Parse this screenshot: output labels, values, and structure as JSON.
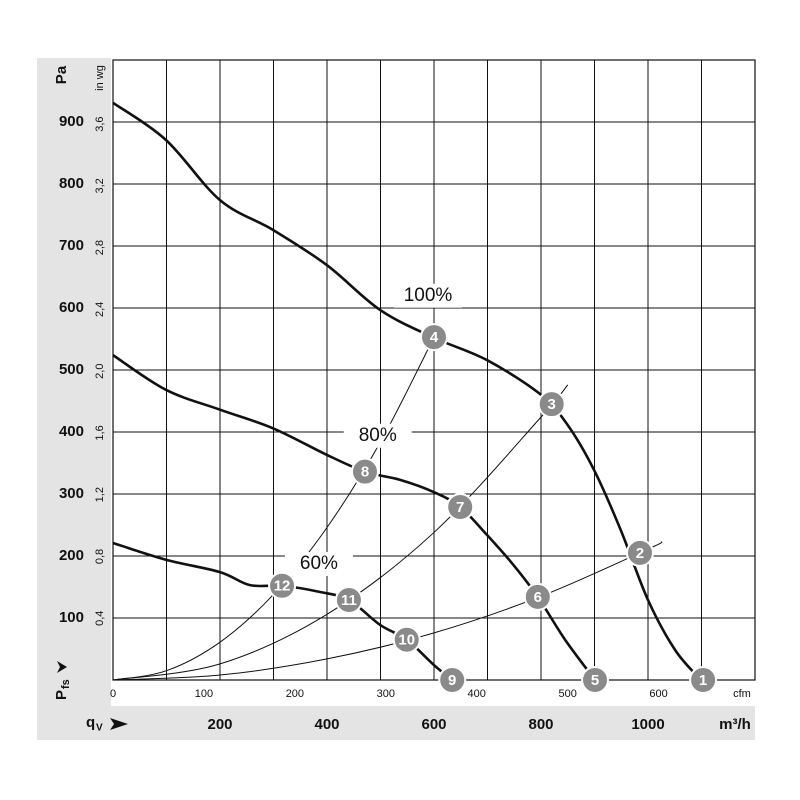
{
  "chart_data": {
    "type": "line",
    "x_unit": "m³/h",
    "x2_unit": "cfm",
    "y_unit": "Pa",
    "y2_unit": "in wg",
    "y_label_main": "P",
    "y_label_sub": "fs",
    "x_label_main": "q",
    "x_label_sub": "V",
    "xlim": [
      0,
      1200
    ],
    "ylim": [
      0,
      1000
    ],
    "x2lim": [
      0,
      706
    ],
    "y2lim": [
      0,
      4.015
    ],
    "xticks": [
      200,
      400,
      600,
      800,
      1000
    ],
    "x_minor_ticks": [
      100,
      300,
      500,
      700,
      900,
      1100
    ],
    "yticks": [
      100,
      200,
      300,
      400,
      500,
      600,
      700,
      800,
      900
    ],
    "x2ticks": [
      0,
      100,
      200,
      300,
      400,
      500,
      600
    ],
    "y2ticks": [
      {
        "value": 0.4,
        "label": "0,4"
      },
      {
        "value": 0.8,
        "label": "0,8"
      },
      {
        "value": 1.2,
        "label": "1,2"
      },
      {
        "value": 1.6,
        "label": "1,6"
      },
      {
        "value": 2.0,
        "label": "2,0"
      },
      {
        "value": 2.4,
        "label": "2,4"
      },
      {
        "value": 2.8,
        "label": "2,8"
      },
      {
        "value": 3.2,
        "label": "3,2"
      },
      {
        "value": 3.6,
        "label": "3,6"
      }
    ],
    "grid": true,
    "series": [
      {
        "name": "100%",
        "color": "#111111",
        "x": [
          0,
          99,
          200,
          299,
          400,
          499,
          600,
          699,
          800,
          850,
          899,
          949,
          1000,
          1051,
          1099
        ],
        "values": [
          931,
          871,
          774,
          726,
          669,
          597,
          552,
          516,
          460,
          411,
          339,
          242,
          129,
          48,
          0
        ]
      },
      {
        "name": "80%",
        "color": "#111111",
        "x": [
          0,
          99,
          200,
          299,
          400,
          471,
          536,
          600,
          649,
          699,
          749,
          794,
          845,
          901
        ],
        "values": [
          524,
          468,
          436,
          406,
          363,
          336,
          323,
          303,
          279,
          234,
          185,
          134,
          65,
          0
        ]
      },
      {
        "name": "60%",
        "color": "#111111",
        "x": [
          0,
          99,
          200,
          256,
          316,
          387,
          441,
          499,
          549,
          600,
          634
        ],
        "values": [
          221,
          194,
          174,
          153,
          152,
          142,
          129,
          89,
          65,
          24,
          0
        ]
      }
    ],
    "system_lines": [
      {
        "x": [
          0,
          200,
          400,
          600,
          800,
          1000,
          1026
        ],
        "values": [
          0,
          8,
          34,
          76,
          135,
          211,
          223
        ]
      },
      {
        "x": [
          0,
          200,
          400,
          600,
          800,
          850
        ],
        "values": [
          0,
          26,
          106,
          238,
          424,
          476
        ]
      },
      {
        "x": [
          0,
          100,
          200,
          300,
          400,
          500,
          600,
          606
        ],
        "values": [
          0,
          15,
          61,
          138,
          246,
          384,
          553,
          565
        ]
      }
    ],
    "points": [
      {
        "label": "1",
        "x": 1103,
        "y": 0
      },
      {
        "label": "2",
        "x": 985,
        "y": 205
      },
      {
        "label": "3",
        "x": 820,
        "y": 445
      },
      {
        "label": "4",
        "x": 600,
        "y": 553
      },
      {
        "label": "5",
        "x": 901,
        "y": 0
      },
      {
        "label": "6",
        "x": 794,
        "y": 134
      },
      {
        "label": "7",
        "x": 649,
        "y": 279
      },
      {
        "label": "8",
        "x": 471,
        "y": 336
      },
      {
        "label": "9",
        "x": 634,
        "y": 0
      },
      {
        "label": "10",
        "x": 549,
        "y": 65
      },
      {
        "label": "11",
        "x": 441,
        "y": 129
      },
      {
        "label": "12",
        "x": 316,
        "y": 152
      }
    ]
  }
}
